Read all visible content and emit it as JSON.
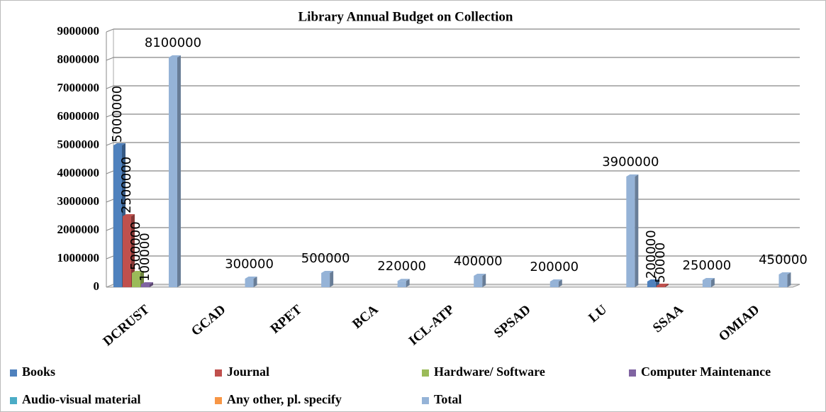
{
  "chart_data": {
    "type": "bar",
    "title": "Library Annual Budget on Collection",
    "categories": [
      "DCRUST",
      "GCAD",
      "RPET",
      "BCA",
      "ICL-ATP",
      "SPSAD",
      "LU",
      "SSAA",
      "OMIAD"
    ],
    "series": [
      {
        "name": "Books",
        "color": "#4f81bd",
        "values": [
          5000000,
          null,
          null,
          null,
          null,
          null,
          null,
          200000,
          null
        ]
      },
      {
        "name": "Journal",
        "color": "#c0504d",
        "values": [
          2500000,
          null,
          null,
          null,
          null,
          null,
          null,
          50000,
          null
        ]
      },
      {
        "name": "Hardware/ Software",
        "color": "#9bbb59",
        "values": [
          500000,
          null,
          null,
          null,
          null,
          null,
          null,
          null,
          null
        ]
      },
      {
        "name": "Computer Maintenance",
        "color": "#8064a2",
        "values": [
          100000,
          null,
          null,
          null,
          null,
          null,
          null,
          null,
          null
        ]
      },
      {
        "name": "Audio-visual material",
        "color": "#4bacc6",
        "values": [
          null,
          null,
          null,
          null,
          null,
          null,
          null,
          null,
          null
        ]
      },
      {
        "name": "Any other, pl. specify",
        "color": "#f79646",
        "values": [
          null,
          null,
          null,
          null,
          null,
          null,
          null,
          null,
          null
        ]
      },
      {
        "name": "Total",
        "color": "#95b3d7",
        "values": [
          8100000,
          300000,
          500000,
          220000,
          400000,
          200000,
          3900000,
          250000,
          450000
        ]
      }
    ],
    "ylim": [
      0,
      9000000
    ],
    "yticks": [
      0,
      1000000,
      2000000,
      3000000,
      4000000,
      5000000,
      6000000,
      7000000,
      8000000,
      9000000
    ],
    "grid": true
  }
}
